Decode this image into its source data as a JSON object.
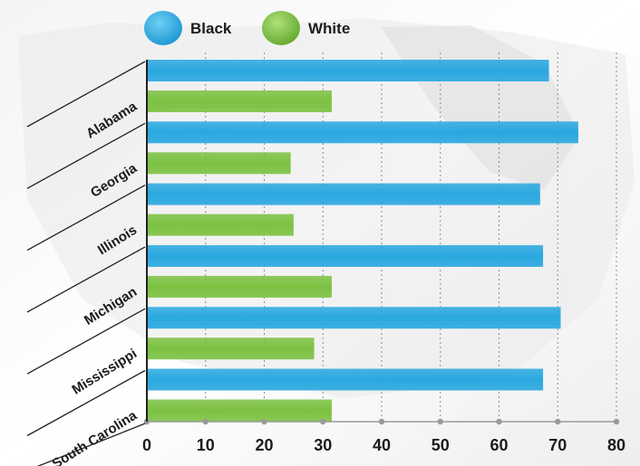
{
  "chart_data": {
    "type": "bar",
    "orientation": "horizontal",
    "categories": [
      "Alabama",
      "Georgia",
      "Illinois",
      "Michigan",
      "Mississippi",
      "South Carolina"
    ],
    "series": [
      {
        "name": "Black",
        "color": "#2aa8e0",
        "values": [
          68.5,
          73.5,
          67,
          67.5,
          70.5,
          67.5
        ]
      },
      {
        "name": "White",
        "color": "#7cc242",
        "values": [
          31.5,
          24.5,
          25,
          31.5,
          28.5,
          31.5
        ]
      }
    ],
    "xlim": [
      0,
      80
    ],
    "xticks": [
      0,
      10,
      20,
      30,
      40,
      50,
      60,
      70,
      80
    ],
    "grid": true,
    "legend_position": "top"
  }
}
